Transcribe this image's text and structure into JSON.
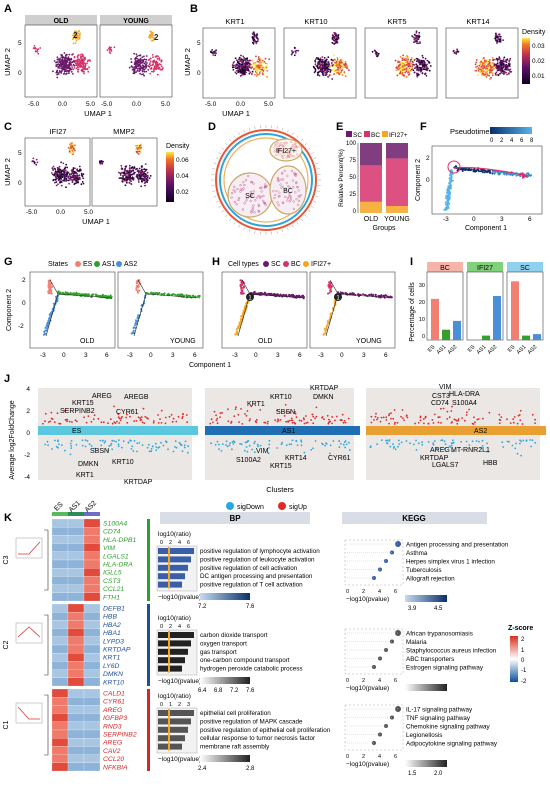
{
  "panels": {
    "A": {
      "letter": "A",
      "groups": [
        "OLD",
        "YOUNG"
      ],
      "xlabel": "UMAP 1",
      "ylabel": "UMAP 2",
      "xticks": [
        "-5.0",
        "0.0",
        "5.0",
        "-5.0",
        "0.0",
        "5.0"
      ],
      "yticks": [
        "5",
        "0"
      ],
      "annot": [
        "2",
        "2"
      ]
    },
    "B": {
      "letter": "B",
      "genes": [
        "KRT1",
        "KRT10",
        "KRT5",
        "KRT14"
      ],
      "xlabel": "UMAP 1",
      "ylabel": "UMAP 2",
      "legend_title": "Density",
      "legend_ticks": [
        "0.03",
        "0.02",
        "0.01"
      ],
      "xticks": [
        "-5.0",
        "0.0",
        "5.0"
      ],
      "yticks": [
        "5",
        "0"
      ]
    },
    "C": {
      "letter": "C",
      "genes": [
        "IFI27",
        "MMP2"
      ],
      "xlabel": "UMAP 1",
      "ylabel": "UMAP 2",
      "legend_title": "Density",
      "legend_ticks": [
        "0.06",
        "0.04",
        "0.02"
      ],
      "xticks": [
        "-5.0",
        "0.0",
        "5.0"
      ],
      "yticks": [
        "5",
        "0"
      ]
    },
    "D": {
      "letter": "D",
      "labels": [
        "IFI27+",
        "SC",
        "BC"
      ]
    },
    "E": {
      "letter": "E",
      "legend": [
        "SC",
        "BC",
        "IFI27+"
      ],
      "ylabel": "Relative Percent(%)",
      "xlabel": "Groups",
      "yticks": [
        "100",
        "75",
        "50",
        "25",
        "0"
      ],
      "groups": [
        "OLD",
        "YOUNG"
      ]
    },
    "F": {
      "letter": "F",
      "legend_title": "Pseudotime",
      "legend_ticks": [
        "0",
        "2",
        "4",
        "6",
        "8"
      ],
      "xlabel": "Component 1",
      "ylabel": "Component 2",
      "xticks": [
        "-3",
        "0",
        "3",
        "6"
      ],
      "yticks": [
        "2",
        "0"
      ]
    },
    "G": {
      "letter": "G",
      "legend_title": "States",
      "states": [
        "ES",
        "AS1",
        "AS2"
      ],
      "groups": [
        "OLD",
        "YOUNG"
      ],
      "ylabel": "Component 2",
      "xticks": [
        "-3",
        "0",
        "3",
        "6",
        "-3",
        "0",
        "3",
        "6"
      ],
      "yticks": [
        "2",
        "0",
        "-2"
      ]
    },
    "H": {
      "letter": "H",
      "legend_title": "Cell types",
      "types": [
        "SC",
        "BC",
        "IFI27+"
      ],
      "groups": [
        "OLD",
        "YOUNG"
      ],
      "xlabel": "Component 1",
      "xticks": [
        "-3",
        "0",
        "3",
        "6",
        "-3",
        "0",
        "3",
        "6"
      ],
      "markers": [
        "1",
        "1"
      ]
    },
    "I": {
      "letter": "I",
      "ylabel": "Percentage of cells",
      "facets": [
        "BC",
        "IFI27",
        "SC"
      ],
      "yticks": [
        "30",
        "20",
        "10",
        "0"
      ],
      "xcats": [
        "ES",
        "AS1",
        "AS2"
      ]
    },
    "J": {
      "letter": "J",
      "ylabel": "Average log2FoldChange",
      "xlabel": "Clusters",
      "yticks": [
        "4",
        "2",
        "0",
        "-2",
        "-4"
      ],
      "legend": [
        "sigDown",
        "sigUp"
      ],
      "c1_labels": [
        "AREG",
        "AREGB",
        "KRT15",
        "SERPINB2",
        "CYR61",
        "ES",
        "SBSN",
        "DMKN",
        "KRT10",
        "KRT1",
        "KRTDAP"
      ],
      "c2_labels": [
        "KRTDAP",
        "DMKN",
        "KRT10",
        "KRT1",
        "SBSN",
        "AS1",
        "VIM",
        "S100A2",
        "KRT14",
        "KRT15",
        "CYR61"
      ],
      "c3_labels": [
        "VIM",
        "CST3",
        "HLA-DRA",
        "CD74",
        "S100A4",
        "AS2",
        "AREG",
        "MT-RNR2L1",
        "KRTDAP",
        "LGALS7",
        "HBB"
      ]
    },
    "K": {
      "letter": "K",
      "cols": [
        "ES",
        "AS1",
        "AS2"
      ],
      "clusters": [
        "C3",
        "C2",
        "C1"
      ],
      "bp_title": "BP",
      "kegg_title": "KEGG",
      "genes_c3": [
        "S100A4",
        "CD74",
        "HLA-DPB1",
        "VIM",
        "LGALS1",
        "HLA-DRA",
        "IGLL5",
        "CST3",
        "CCL21",
        "FTH1"
      ],
      "genes_c2": [
        "DEFB1",
        "HBB",
        "HBA2",
        "HBA1",
        "LYPD3",
        "KRTDAP",
        "KRT1",
        "LY6D",
        "DMKN",
        "KRT10"
      ],
      "genes_c1": [
        "CALD1",
        "CYR61",
        "AREG",
        "IGFBP3",
        "RND3",
        "SERPINB2",
        "AREG",
        "CAV2",
        "CCL20",
        "NFKBIA"
      ],
      "bp_c3": [
        "positive regulation of lymphocyte activation",
        "positive regulation of leukocyte activation",
        "positive regulation of cell activation",
        "DC antigen processing and presentation",
        "positive regulation of T cell activation"
      ],
      "bp_c2": [
        "carbon dioxide transport",
        "oxygen transport",
        "gas transport",
        "one-carbon compound transport",
        "hydrogen peroxide catabolic process"
      ],
      "bp_c1": [
        "epithelial cell proliferation",
        "positive regulation of MAPK cascade",
        "positive regulation of epithelial cell proliferation",
        "cellular response to tumor necrosis factor",
        "membrane raft assembly"
      ],
      "kegg_c3": [
        "Antigen processing and presentation",
        "Asthma",
        "Herpes simplex virus 1 infection",
        "Tuberculosis",
        "Allograft rejection"
      ],
      "kegg_c2": [
        "African trypanosomiasis",
        "Malaria",
        "Staphylococcus aureus infection",
        "ABC transporters",
        "Estrogen signaling pathway"
      ],
      "kegg_c1": [
        "IL-17 signaling pathway",
        "TNF signaling pathway",
        "Chemokine signaling pathway",
        "Legionellosis",
        "Adipocytokine signaling pathway"
      ],
      "log10ratio": "log10(ratio)",
      "neglog": "−log10(pvalue)",
      "bp_c3_scale": [
        "7.2",
        "7.6"
      ],
      "bp_c2_scale": [
        "6.4",
        "6.8",
        "7.2",
        "7.6"
      ],
      "bp_c1_scale": [
        "2.4",
        "2.8"
      ],
      "kegg_c3_scale": [
        "3.9",
        "4.5"
      ],
      "kegg_c1_scale": [
        "1.5",
        "2.0"
      ],
      "bp_ticks_a": [
        "0",
        "2",
        "4",
        "6"
      ],
      "bp_ticks_c1": [
        "0",
        "1",
        "2",
        "3"
      ],
      "kegg_ticks": [
        "0",
        "2",
        "4",
        "6"
      ],
      "zscore_title": "Z-score",
      "zscore_ticks": [
        "2",
        "1",
        "0",
        "-1",
        "-2"
      ]
    }
  },
  "colors": {
    "ES": "#f28072",
    "AS1": "#33a02c",
    "AS2": "#4a90d9",
    "SC": "#6a1b6a",
    "BC": "#d6336c",
    "IFI27": "#f5a623",
    "sigDown": "#29a8e0",
    "sigUp": "#e02a2a"
  }
}
